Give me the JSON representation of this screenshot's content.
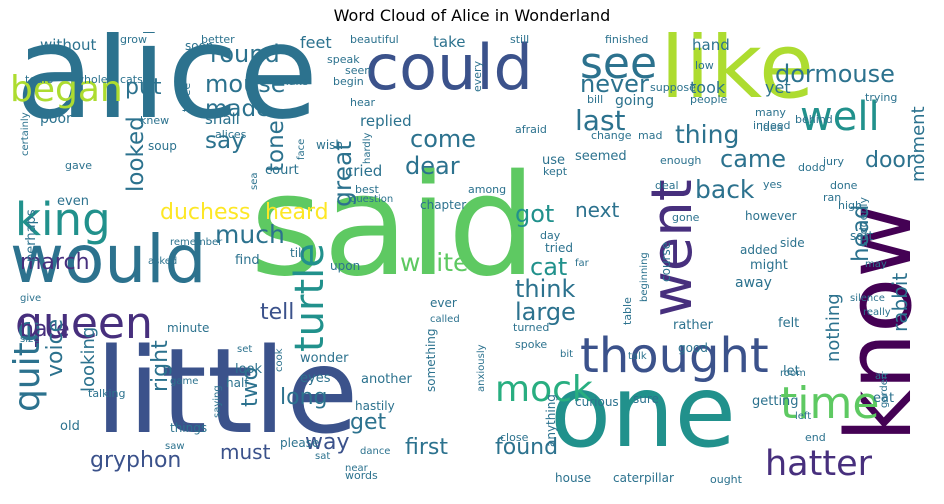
{
  "title": "Word Cloud of Alice in Wonderland",
  "palette": {
    "dark_purple": "#440154",
    "indigo": "#472f7d",
    "blue": "#3b528b",
    "steel": "#2c728e",
    "teal": "#21918c",
    "green_teal": "#28ae80",
    "green": "#5ec962",
    "yellow_green": "#addc30",
    "yellow": "#fde725"
  },
  "words": [
    {
      "text": "alice",
      "color": "#2c728e",
      "weight": 100
    },
    {
      "text": "said",
      "color": "#5ec962",
      "weight": 98
    },
    {
      "text": "little",
      "color": "#3b528b",
      "weight": 60
    },
    {
      "text": "one",
      "color": "#21918c",
      "weight": 56
    },
    {
      "text": "know",
      "color": "#440154",
      "weight": 46
    },
    {
      "text": "like",
      "color": "#addc30",
      "weight": 45
    },
    {
      "text": "could",
      "color": "#3b528b",
      "weight": 38
    },
    {
      "text": "would",
      "color": "#2c728e",
      "weight": 40
    },
    {
      "text": "went",
      "color": "#472f7d",
      "weight": 36
    },
    {
      "text": "thought",
      "color": "#3b528b",
      "weight": 30
    },
    {
      "text": "queen",
      "color": "#472f7d",
      "weight": 27
    },
    {
      "text": "king",
      "color": "#21918c",
      "weight": 27
    },
    {
      "text": "time",
      "color": "#5ec962",
      "weight": 27
    },
    {
      "text": "see",
      "color": "#2c728e",
      "weight": 27
    },
    {
      "text": "well",
      "color": "#21918c",
      "weight": 25
    },
    {
      "text": "turtle",
      "color": "#21918c",
      "weight": 25
    },
    {
      "text": "hatter",
      "color": "#472f7d",
      "weight": 24
    },
    {
      "text": "mock",
      "color": "#28ae80",
      "weight": 24
    },
    {
      "text": "quite",
      "color": "#2c728e",
      "weight": 23
    },
    {
      "text": "began",
      "color": "#addc30",
      "weight": 22
    },
    {
      "text": "gryphon",
      "color": "#3b528b",
      "weight": 17
    },
    {
      "text": "dormouse",
      "color": "#2c728e",
      "weight": 17
    },
    {
      "text": "last",
      "color": "#2c728e",
      "weight": 19
    },
    {
      "text": "come",
      "color": "#2c728e",
      "weight": 17
    },
    {
      "text": "came",
      "color": "#2c728e",
      "weight": 17
    },
    {
      "text": "thing",
      "color": "#2c728e",
      "weight": 17
    },
    {
      "text": "back",
      "color": "#2c728e",
      "weight": 17
    },
    {
      "text": "great",
      "color": "#2c728e",
      "weight": 16
    },
    {
      "text": "duchess",
      "color": "#fde725",
      "weight": 16
    },
    {
      "text": "heard",
      "color": "#fde725",
      "weight": 16
    },
    {
      "text": "round",
      "color": "#2c728e",
      "weight": 16
    },
    {
      "text": "mouse",
      "color": "#2c728e",
      "weight": 16
    },
    {
      "text": "never",
      "color": "#2c728e",
      "weight": 16
    },
    {
      "text": "much",
      "color": "#2c728e",
      "weight": 17
    },
    {
      "text": "made",
      "color": "#2c728e",
      "weight": 15
    },
    {
      "text": "say",
      "color": "#2c728e",
      "weight": 15
    },
    {
      "text": "tone",
      "color": "#2c728e",
      "weight": 15
    },
    {
      "text": "put",
      "color": "#2c728e",
      "weight": 15
    },
    {
      "text": "looked",
      "color": "#2c728e",
      "weight": 15
    },
    {
      "text": "dear",
      "color": "#2c728e",
      "weight": 15
    },
    {
      "text": "got",
      "color": "#21918c",
      "weight": 15
    },
    {
      "text": "head",
      "color": "#2c728e",
      "weight": 15
    },
    {
      "text": "door",
      "color": "#2c728e",
      "weight": 15
    },
    {
      "text": "cat",
      "color": "#21918c",
      "weight": 15
    },
    {
      "text": "white",
      "color": "#5ec962",
      "weight": 15
    },
    {
      "text": "think",
      "color": "#2c728e",
      "weight": 15
    },
    {
      "text": "large",
      "color": "#2c728e",
      "weight": 15
    },
    {
      "text": "next",
      "color": "#2c728e",
      "weight": 13
    },
    {
      "text": "march",
      "color": "#472f7d",
      "weight": 13
    },
    {
      "text": "tell",
      "color": "#3b528b",
      "weight": 13
    },
    {
      "text": "hare",
      "color": "#472f7d",
      "weight": 13
    },
    {
      "text": "voice",
      "color": "#2c728e",
      "weight": 13
    },
    {
      "text": "looking",
      "color": "#2c728e",
      "weight": 13
    },
    {
      "text": "right",
      "color": "#2c728e",
      "weight": 13
    },
    {
      "text": "two",
      "color": "#2c728e",
      "weight": 13
    },
    {
      "text": "long",
      "color": "#2c728e",
      "weight": 13
    },
    {
      "text": "get",
      "color": "#2c728e",
      "weight": 13
    },
    {
      "text": "way",
      "color": "#3b528b",
      "weight": 13
    },
    {
      "text": "must",
      "color": "#3b528b",
      "weight": 13
    },
    {
      "text": "first",
      "color": "#2c728e",
      "weight": 13
    },
    {
      "text": "found",
      "color": "#2c728e",
      "weight": 13
    },
    {
      "text": "nothing",
      "color": "#2c728e",
      "weight": 12
    },
    {
      "text": "rabbit",
      "color": "#2c728e",
      "weight": 12
    },
    {
      "text": "moment",
      "color": "#2c728e",
      "weight": 11
    },
    {
      "text": "cried",
      "color": "#2c728e",
      "weight": 11
    },
    {
      "text": "replied",
      "color": "#2c728e",
      "weight": 11
    },
    {
      "text": "feet",
      "color": "#2c728e",
      "weight": 11
    },
    {
      "text": "take",
      "color": "#2c728e",
      "weight": 11
    },
    {
      "text": "hand",
      "color": "#2c728e",
      "weight": 11
    },
    {
      "text": "took",
      "color": "#2c728e",
      "weight": 11
    },
    {
      "text": "yet",
      "color": "#2c728e",
      "weight": 11
    },
    {
      "text": "without",
      "color": "#2c728e",
      "weight": 10
    },
    {
      "text": "soon",
      "color": "#2c728e",
      "weight": 10
    },
    {
      "text": "better",
      "color": "#2c728e",
      "weight": 9
    },
    {
      "text": "grow",
      "color": "#2c728e",
      "weight": 9
    },
    {
      "text": "beautiful",
      "color": "#2c728e",
      "weight": 9
    },
    {
      "text": "still",
      "color": "#2c728e",
      "weight": 9
    },
    {
      "text": "finished",
      "color": "#2c728e",
      "weight": 9
    },
    {
      "text": "low",
      "color": "#2c728e",
      "weight": 9
    },
    {
      "text": "many",
      "color": "#2c728e",
      "weight": 9
    },
    {
      "text": "speak",
      "color": "#2c728e",
      "weight": 9
    },
    {
      "text": "seen",
      "color": "#2c728e",
      "weight": 9
    },
    {
      "text": "begin",
      "color": "#2c728e",
      "weight": 9
    },
    {
      "text": "every",
      "color": "#2c728e",
      "weight": 9
    },
    {
      "text": "make",
      "color": "#2c728e",
      "weight": 9
    },
    {
      "text": "three",
      "color": "#2c728e",
      "weight": 9
    },
    {
      "text": "tears",
      "color": "#2c728e",
      "weight": 9
    },
    {
      "text": "whole",
      "color": "#2c728e",
      "weight": 9
    },
    {
      "text": "cats",
      "color": "#2c728e",
      "weight": 9
    },
    {
      "text": "knew",
      "color": "#2c728e",
      "weight": 9
    },
    {
      "text": "poor",
      "color": "#2c728e",
      "weight": 10
    },
    {
      "text": "shall",
      "color": "#2c728e",
      "weight": 10
    },
    {
      "text": "alices",
      "color": "#2c728e",
      "weight": 9
    },
    {
      "text": "hear",
      "color": "#2c728e",
      "weight": 9
    },
    {
      "text": "going",
      "color": "#2c728e",
      "weight": 10
    },
    {
      "text": "idea",
      "color": "#2c728e",
      "weight": 9
    },
    {
      "text": "people",
      "color": "#2c728e",
      "weight": 9
    },
    {
      "text": "trying",
      "color": "#2c728e",
      "weight": 9
    },
    {
      "text": "bill",
      "color": "#2c728e",
      "weight": 9
    },
    {
      "text": "suppose",
      "color": "#2c728e",
      "weight": 9
    },
    {
      "text": "certainly",
      "color": "#2c728e",
      "weight": 8
    },
    {
      "text": "soup",
      "color": "#2c728e",
      "weight": 9
    },
    {
      "text": "wish",
      "color": "#2c728e",
      "weight": 9
    },
    {
      "text": "face",
      "color": "#2c728e",
      "weight": 8
    },
    {
      "text": "hardly",
      "color": "#2c728e",
      "weight": 8
    },
    {
      "text": "afraid",
      "color": "#2c728e",
      "weight": 9
    },
    {
      "text": "change",
      "color": "#2c728e",
      "weight": 9
    },
    {
      "text": "mad",
      "color": "#2c728e",
      "weight": 9
    },
    {
      "text": "indeed",
      "color": "#2c728e",
      "weight": 8
    },
    {
      "text": "behind",
      "color": "#2c728e",
      "weight": 9
    },
    {
      "text": "gave",
      "color": "#2c728e",
      "weight": 9
    },
    {
      "text": "court",
      "color": "#2c728e",
      "weight": 10
    },
    {
      "text": "use",
      "color": "#2c728e",
      "weight": 10
    },
    {
      "text": "seemed",
      "color": "#2c728e",
      "weight": 10
    },
    {
      "text": "kept",
      "color": "#2c728e",
      "weight": 8
    },
    {
      "text": "enough",
      "color": "#2c728e",
      "weight": 9
    },
    {
      "text": "dodo",
      "color": "#2c728e",
      "weight": 8
    },
    {
      "text": "jury",
      "color": "#2c728e",
      "weight": 9
    },
    {
      "text": "sea",
      "color": "#2c728e",
      "weight": 8
    },
    {
      "text": "best",
      "color": "#2c728e",
      "weight": 8
    },
    {
      "text": "among",
      "color": "#2c728e",
      "weight": 8
    },
    {
      "text": "deal",
      "color": "#2c728e",
      "weight": 8
    },
    {
      "text": "yes",
      "color": "#2c728e",
      "weight": 8
    },
    {
      "text": "done",
      "color": "#2c728e",
      "weight": 8
    },
    {
      "text": "ran",
      "color": "#2c728e",
      "weight": 8
    },
    {
      "text": "high",
      "color": "#2c728e",
      "weight": 8
    },
    {
      "text": "suddenly",
      "color": "#2c728e",
      "weight": 9
    },
    {
      "text": "even",
      "color": "#2c728e",
      "weight": 10
    },
    {
      "text": "question",
      "color": "#2c728e",
      "weight": 8
    },
    {
      "text": "chapter",
      "color": "#2c728e",
      "weight": 10
    },
    {
      "text": "however",
      "color": "#2c728e",
      "weight": 10
    },
    {
      "text": "sort",
      "color": "#2c728e",
      "weight": 10
    },
    {
      "text": "gone",
      "color": "#2c728e",
      "weight": 8
    },
    {
      "text": "perhaps",
      "color": "#2c728e",
      "weight": 9
    },
    {
      "text": "remember",
      "color": "#2c728e",
      "weight": 8
    },
    {
      "text": "day",
      "color": "#2c728e",
      "weight": 9
    },
    {
      "text": "tried",
      "color": "#2c728e",
      "weight": 10
    },
    {
      "text": "course",
      "color": "#2c728e",
      "weight": 10
    },
    {
      "text": "side",
      "color": "#2c728e",
      "weight": 9
    },
    {
      "text": "asked",
      "color": "#2c728e",
      "weight": 8
    },
    {
      "text": "till",
      "color": "#2c728e",
      "weight": 10
    },
    {
      "text": "upon",
      "color": "#2c728e",
      "weight": 10
    },
    {
      "text": "find",
      "color": "#2c728e",
      "weight": 10
    },
    {
      "text": "far",
      "color": "#2c728e",
      "weight": 8
    },
    {
      "text": "might",
      "color": "#2c728e",
      "weight": 10
    },
    {
      "text": "added",
      "color": "#2c728e",
      "weight": 10
    },
    {
      "text": "may",
      "color": "#2c728e",
      "weight": 8
    },
    {
      "text": "beginning",
      "color": "#2c728e",
      "weight": 8
    },
    {
      "text": "away",
      "color": "#2c728e",
      "weight": 11
    },
    {
      "text": "silence",
      "color": "#2c728e",
      "weight": 8
    },
    {
      "text": "ever",
      "color": "#2c728e",
      "weight": 9
    },
    {
      "text": "called",
      "color": "#2c728e",
      "weight": 8
    },
    {
      "text": "table",
      "color": "#2c728e",
      "weight": 9
    },
    {
      "text": "rather",
      "color": "#2c728e",
      "weight": 10
    },
    {
      "text": "felt",
      "color": "#2c728e",
      "weight": 10
    },
    {
      "text": "really",
      "color": "#2c728e",
      "weight": 8
    },
    {
      "text": "turned",
      "color": "#2c728e",
      "weight": 9
    },
    {
      "text": "give",
      "color": "#2c728e",
      "weight": 8
    },
    {
      "text": "size",
      "color": "#2c728e",
      "weight": 8
    },
    {
      "text": "minute",
      "color": "#2c728e",
      "weight": 9
    },
    {
      "text": "wonder",
      "color": "#2c728e",
      "weight": 9
    },
    {
      "text": "spoke",
      "color": "#2c728e",
      "weight": 8
    },
    {
      "text": "good",
      "color": "#2c728e",
      "weight": 10
    },
    {
      "text": "let",
      "color": "#2c728e",
      "weight": 10
    },
    {
      "text": "bit",
      "color": "#2c728e",
      "weight": 8
    },
    {
      "text": "talk",
      "color": "#2c728e",
      "weight": 8
    },
    {
      "text": "set",
      "color": "#2c728e",
      "weight": 8
    },
    {
      "text": "cook",
      "color": "#2c728e",
      "weight": 8
    },
    {
      "text": "look",
      "color": "#2c728e",
      "weight": 10
    },
    {
      "text": "eyes",
      "color": "#2c728e",
      "weight": 10
    },
    {
      "text": "another",
      "color": "#2c728e",
      "weight": 10
    },
    {
      "text": "room",
      "color": "#2c728e",
      "weight": 8
    },
    {
      "text": "air",
      "color": "#2c728e",
      "weight": 8
    },
    {
      "text": "half",
      "color": "#2c728e",
      "weight": 10
    },
    {
      "text": "game",
      "color": "#2c728e",
      "weight": 8
    },
    {
      "text": "talking",
      "color": "#2c728e",
      "weight": 9
    },
    {
      "text": "hastily",
      "color": "#2c728e",
      "weight": 9
    },
    {
      "text": "something",
      "color": "#2c728e",
      "weight": 9
    },
    {
      "text": "anxiously",
      "color": "#2c728e",
      "weight": 8
    },
    {
      "text": "sure",
      "color": "#2c728e",
      "weight": 10
    },
    {
      "text": "curious",
      "color": "#2c728e",
      "weight": 10
    },
    {
      "text": "getting",
      "color": "#2c728e",
      "weight": 10
    },
    {
      "text": "eat",
      "color": "#2c728e",
      "weight": 10
    },
    {
      "text": "left",
      "color": "#2c728e",
      "weight": 8
    },
    {
      "text": "garden",
      "color": "#2c728e",
      "weight": 8
    },
    {
      "text": "things",
      "color": "#2c728e",
      "weight": 9
    },
    {
      "text": "saying",
      "color": "#2c728e",
      "weight": 8
    },
    {
      "text": "please",
      "color": "#2c728e",
      "weight": 9
    },
    {
      "text": "saw",
      "color": "#2c728e",
      "weight": 8
    },
    {
      "text": "old",
      "color": "#2c728e",
      "weight": 9
    },
    {
      "text": "sat",
      "color": "#2c728e",
      "weight": 8
    },
    {
      "text": "dance",
      "color": "#2c728e",
      "weight": 8
    },
    {
      "text": "anything",
      "color": "#2c728e",
      "weight": 9
    },
    {
      "text": "close",
      "color": "#2c728e",
      "weight": 8
    },
    {
      "text": "end",
      "color": "#2c728e",
      "weight": 9
    },
    {
      "text": "near",
      "color": "#2c728e",
      "weight": 8
    },
    {
      "text": "words",
      "color": "#2c728e",
      "weight": 9
    },
    {
      "text": "house",
      "color": "#2c728e",
      "weight": 9
    },
    {
      "text": "caterpillar",
      "color": "#2c728e",
      "weight": 9
    },
    {
      "text": "ought",
      "color": "#2c728e",
      "weight": 8
    }
  ]
}
